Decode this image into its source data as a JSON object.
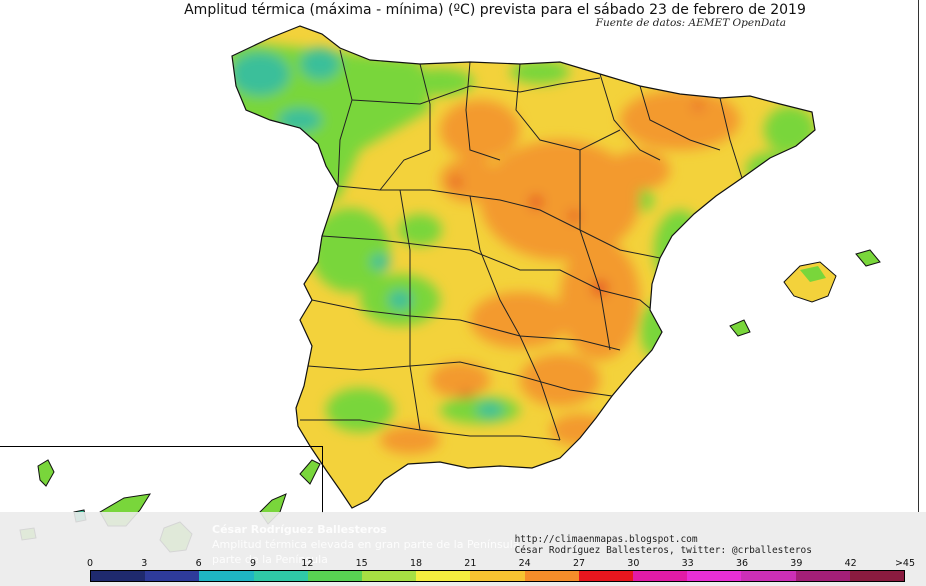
{
  "title": "Amplitud térmica (máxima - mínima) (ºC) prevista para el sábado 23 de febrero de 2019",
  "source": "Fuente de datos: AEMET OpenData",
  "credit": {
    "url": "http://climaenmapas.blogspot.com",
    "author": "César Rodríguez Ballesteros, twitter: @crballesteros"
  },
  "overlay": {
    "heading": "César Rodríguez Ballesteros",
    "line1": "Amplitud térmica elevada en gran parte de la Península",
    "line2": "parte de la Península"
  },
  "colors": {
    "sea": "#ffffff",
    "land_base": "#f3d23b",
    "green": "#79d63b",
    "teal": "#3bbf9a",
    "orange": "#f39a2d",
    "red": "#e23224"
  },
  "scale": {
    "labels": [
      "0",
      "3",
      "6",
      "9",
      "12",
      "15",
      "18",
      "21",
      "24",
      "27",
      "30",
      "33",
      "36",
      "39",
      "42",
      ">45"
    ],
    "colors": [
      "#1f2a6e",
      "#2e3b9b",
      "#1fb5c4",
      "#2fc9a6",
      "#58d253",
      "#a6e043",
      "#f5ee3f",
      "#f7c431",
      "#f68d2a",
      "#e8161e",
      "#e21ba6",
      "#e92fd6",
      "#cc2fb7",
      "#a41f78",
      "#8a1b3f"
    ]
  }
}
